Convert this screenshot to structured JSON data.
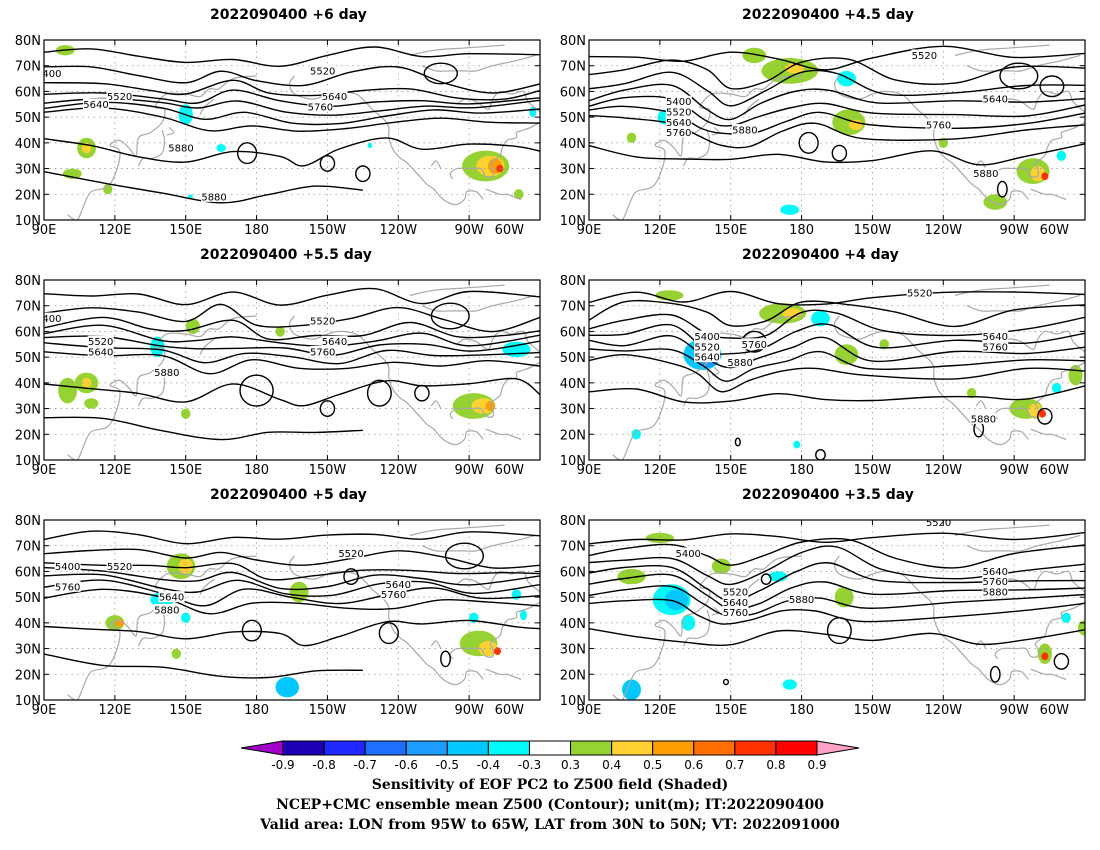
{
  "panels": [
    {
      "id": "p1",
      "title": "2022090400  +6 day"
    },
    {
      "id": "p2",
      "title": "2022090400  +4.5 day"
    },
    {
      "id": "p3",
      "title": "2022090400  +5.5 day"
    },
    {
      "id": "p4",
      "title": "2022090400  +4 day"
    },
    {
      "id": "p5",
      "title": "2022090400  +5 day"
    },
    {
      "id": "p6",
      "title": "2022090400  +3.5 day"
    }
  ],
  "axes": {
    "lat_labels": [
      "80N",
      "70N",
      "60N",
      "50N",
      "40N",
      "30N",
      "20N",
      "10N"
    ],
    "lon_labels": [
      "90E",
      "120E",
      "150E",
      "180",
      "150W",
      "120W",
      "90W",
      "60W"
    ],
    "lat_range": [
      10,
      80
    ],
    "lon_range_east": [
      90,
      300
    ]
  },
  "contour_labels": [
    "5400",
    "5520",
    "5640",
    "5760",
    "5880"
  ],
  "colorbar": {
    "ticks": [
      "-0.9",
      "-0.8",
      "-0.7",
      "-0.6",
      "-0.5",
      "-0.4",
      "-0.3",
      "0.3",
      "0.4",
      "0.5",
      "0.6",
      "0.7",
      "0.8",
      "0.9"
    ],
    "colors": [
      "#a000c8",
      "#1e00b4",
      "#1e28ff",
      "#1e6eff",
      "#1e9bff",
      "#00c8ff",
      "#00fafa",
      "#ffffff",
      "#96d232",
      "#ffd232",
      "#ffa000",
      "#ff6e00",
      "#ff3200",
      "#ff0000",
      "#ffa0c8"
    ]
  },
  "captions": {
    "line1": "Sensitivity of EOF PC2 to Z500 field (Shaded)",
    "line2": "NCEP+CMC ensemble mean Z500 (Contour); unit(m); IT:2022090400",
    "line3": "Valid area: LON from 95W to 65W, LAT from 30N to 50N; VT: 2022091000"
  }
}
